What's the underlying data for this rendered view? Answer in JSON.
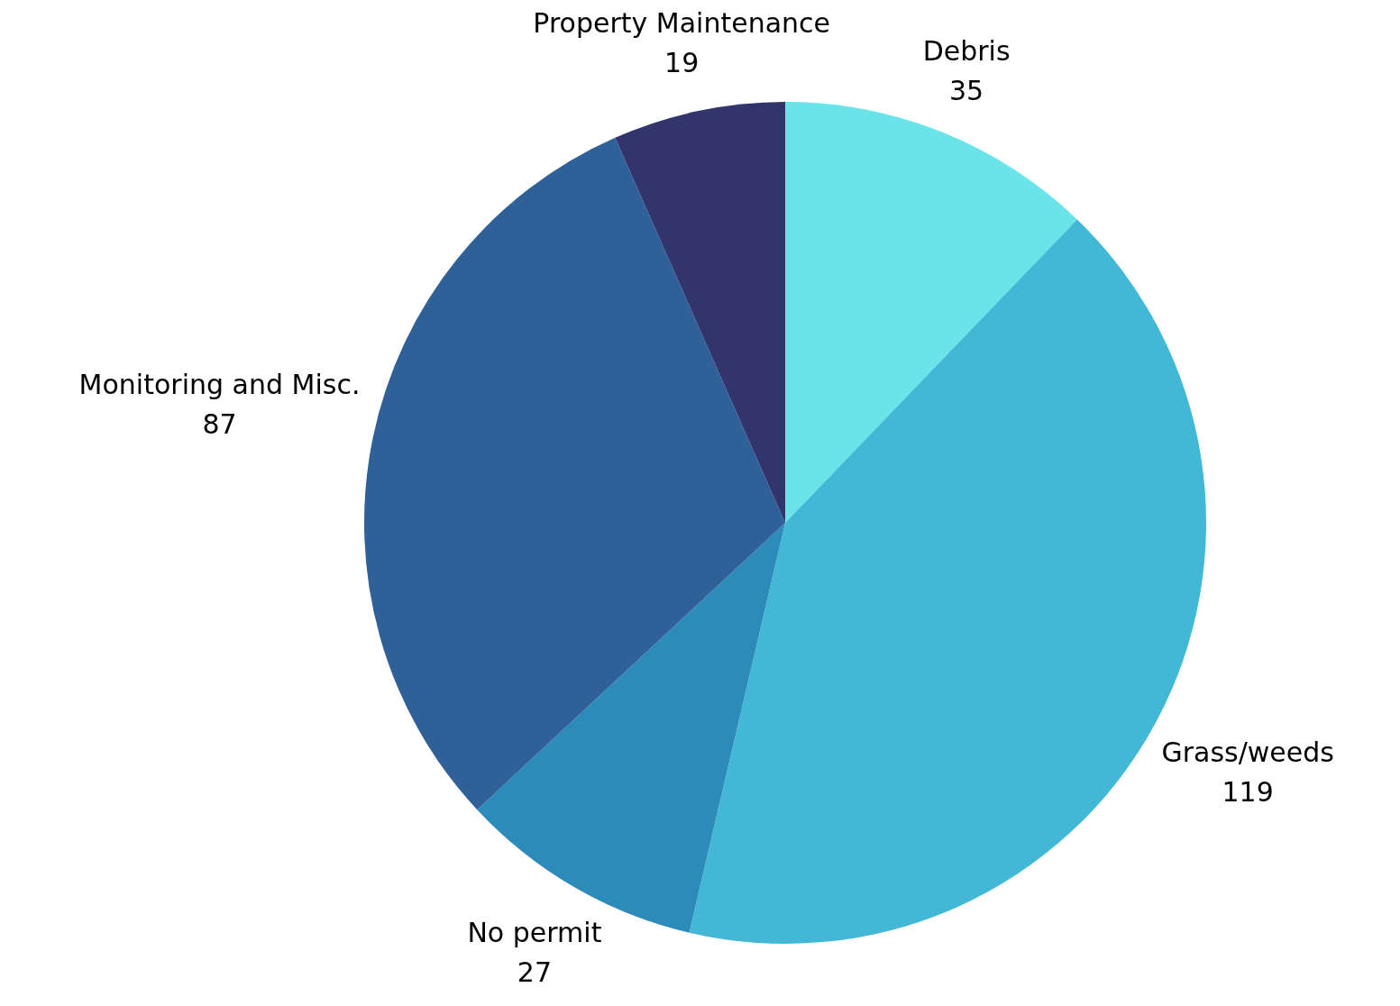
{
  "chart_data": {
    "type": "pie",
    "categories": [
      "Debris",
      "Grass/weeds",
      "No permit",
      "Monitoring and Misc.",
      "Property Maintenance"
    ],
    "values": [
      35,
      119,
      27,
      87,
      19
    ],
    "colors": [
      "#6ae4e8",
      "#42b7d6",
      "#2d8bba",
      "#2f6098",
      "#31356b"
    ],
    "data_labels": true,
    "legend": false
  }
}
